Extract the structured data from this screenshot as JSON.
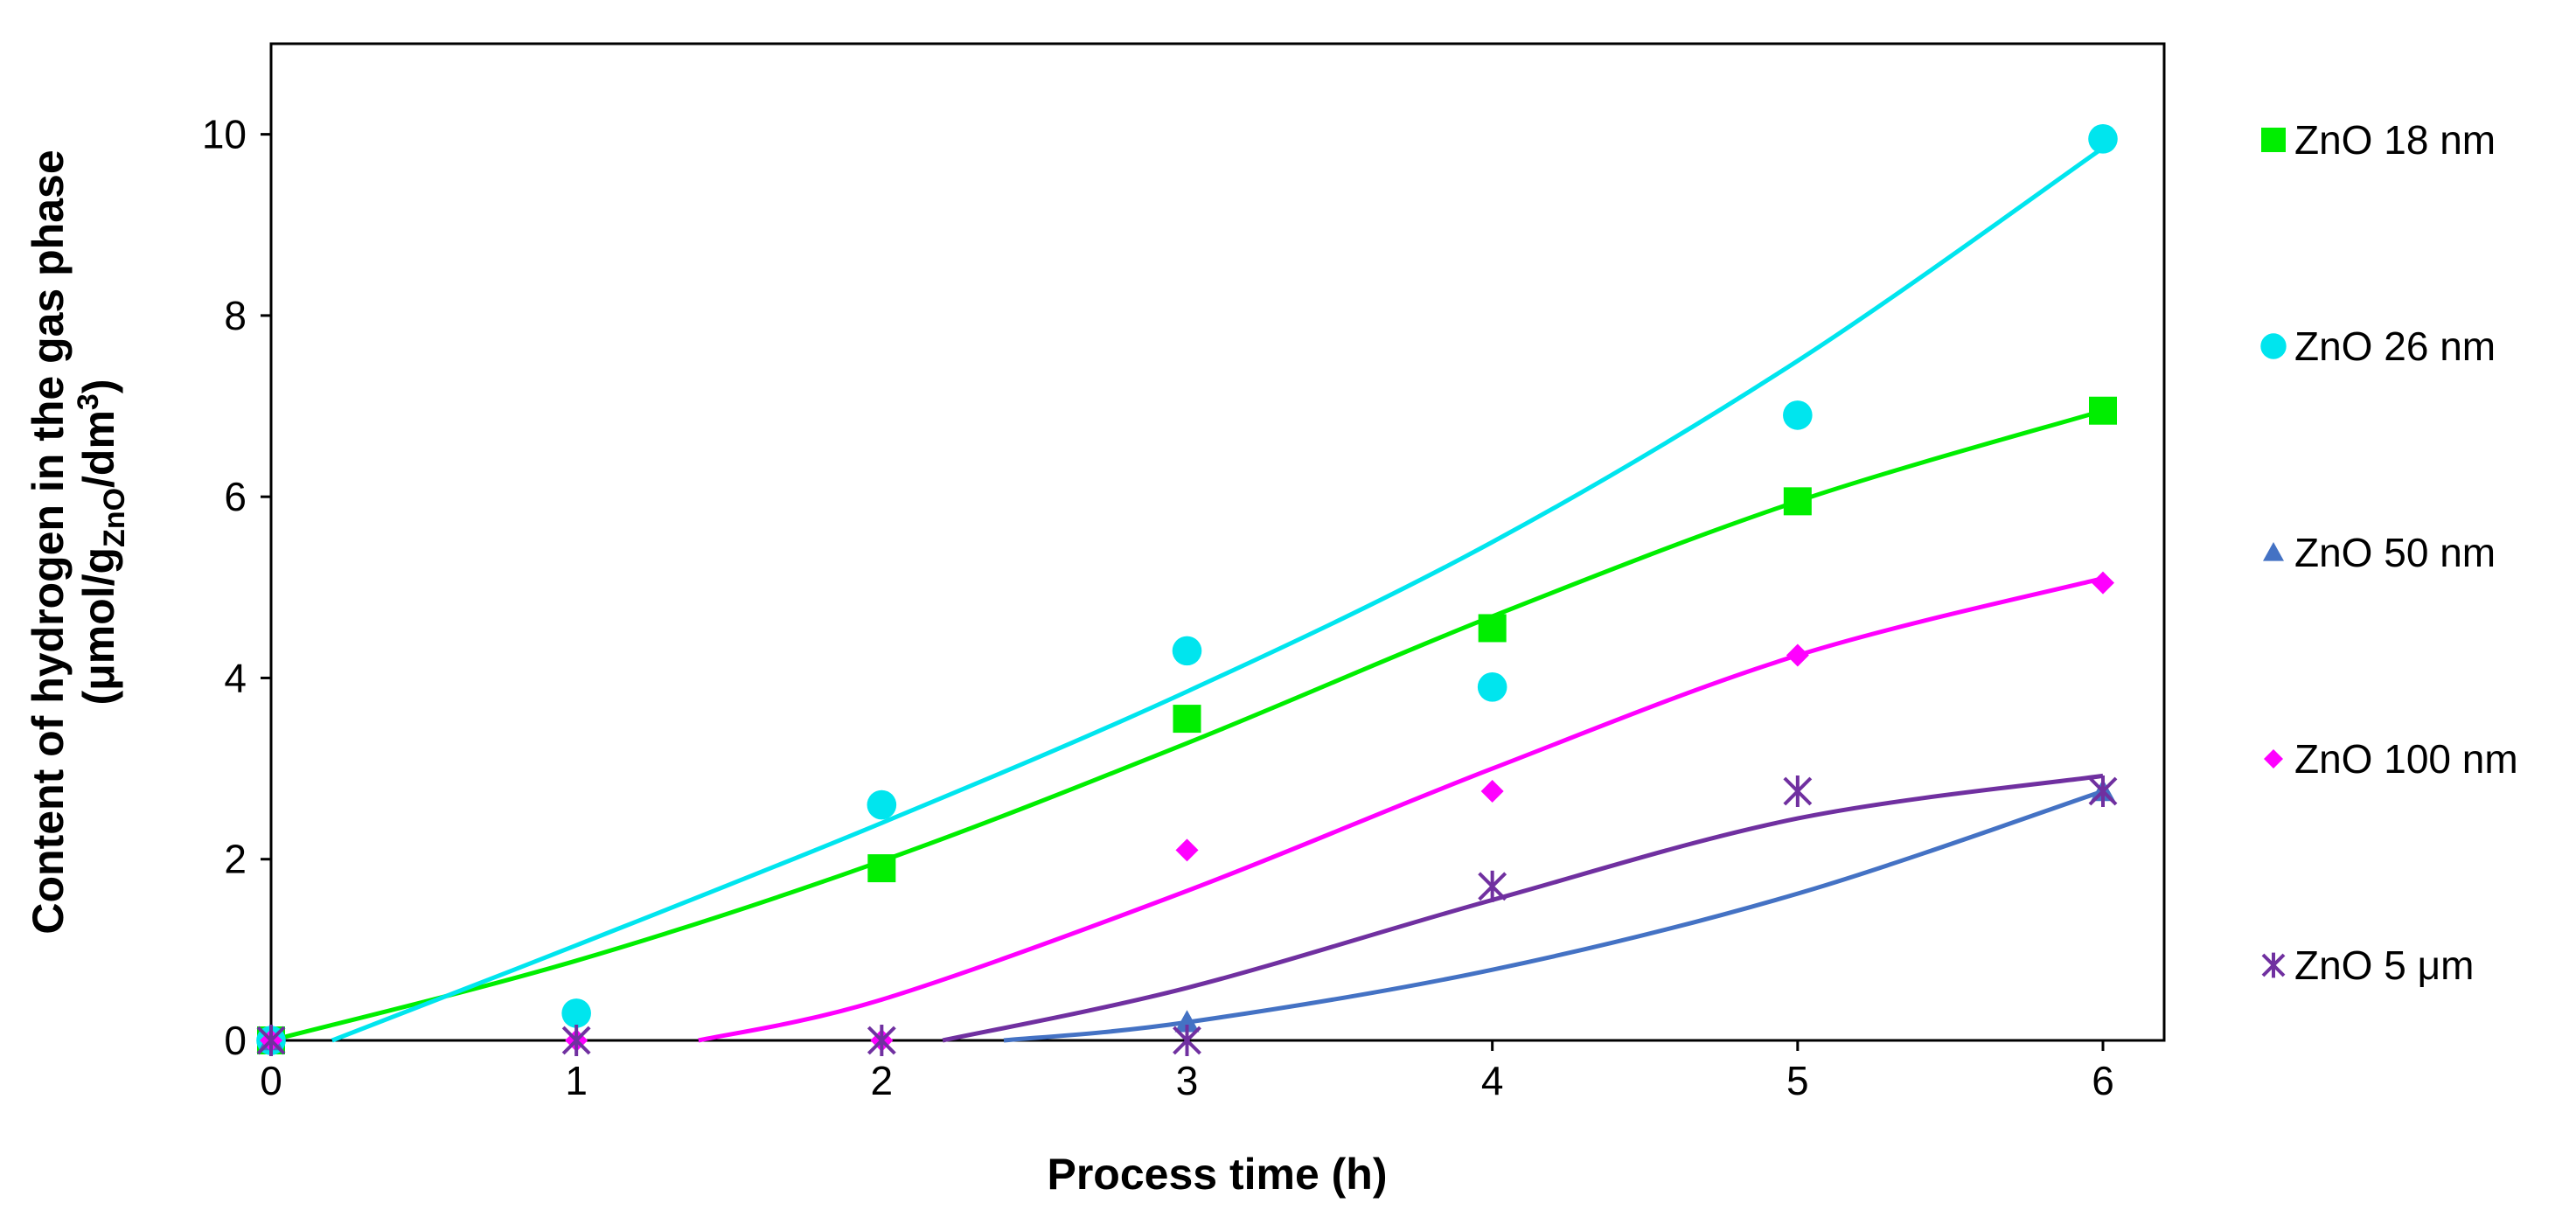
{
  "chart_data": {
    "type": "scatter",
    "title": "",
    "xlabel": "Process time (h)",
    "ylabel": {
      "line1": "Content of hydrogen in the gas phase",
      "line2_prefix": "(μmol/g",
      "line2_sub": "ZnO",
      "line2_mid": "/dm",
      "line2_sup": "3",
      "line2_suffix": ")"
    },
    "xlim": [
      0,
      6
    ],
    "ylim": [
      0,
      11
    ],
    "x_ticks": [
      "0",
      "1",
      "2",
      "3",
      "4",
      "5",
      "6"
    ],
    "y_ticks": [
      "0",
      "2",
      "4",
      "6",
      "8",
      "10"
    ],
    "grid": false,
    "legend_position": "right",
    "series": [
      {
        "name": "ZnO 18 nm",
        "color": "#00EE00",
        "marker": "square",
        "x": [
          0,
          2,
          3,
          4,
          5,
          6
        ],
        "y": [
          0,
          1.9,
          3.55,
          4.55,
          5.95,
          6.95
        ],
        "fit": [
          [
            0,
            0
          ],
          [
            1,
            0.88
          ],
          [
            2,
            1.98
          ],
          [
            3,
            3.28
          ],
          [
            4,
            4.68
          ],
          [
            5,
            5.95
          ],
          [
            6,
            6.95
          ]
        ]
      },
      {
        "name": "ZnO 26 nm",
        "color": "#00E5EE",
        "marker": "circle",
        "x": [
          0,
          1,
          2,
          3,
          4,
          5,
          6
        ],
        "y": [
          0,
          0.3,
          2.6,
          4.3,
          3.9,
          6.9,
          9.95
        ],
        "fit": [
          [
            0.2,
            0
          ],
          [
            1,
            1.05
          ],
          [
            2,
            2.4
          ],
          [
            3,
            3.85
          ],
          [
            4,
            5.5
          ],
          [
            5,
            7.5
          ],
          [
            6,
            9.85
          ]
        ]
      },
      {
        "name": "ZnO 50 nm",
        "color": "#4472C4",
        "marker": "triangle",
        "x": [
          0,
          3,
          6
        ],
        "y": [
          0,
          0.2,
          2.75
        ],
        "fit": [
          [
            2.4,
            0
          ],
          [
            3,
            0.2
          ],
          [
            4,
            0.78
          ],
          [
            5,
            1.62
          ],
          [
            6,
            2.75
          ]
        ]
      },
      {
        "name": "ZnO 100 nm",
        "color": "#FF00FF",
        "marker": "diamond",
        "x": [
          0,
          1,
          2,
          3,
          4,
          5,
          6
        ],
        "y": [
          0,
          0,
          0,
          2.1,
          2.75,
          4.25,
          5.05
        ],
        "fit": [
          [
            1.4,
            0
          ],
          [
            2,
            0.45
          ],
          [
            3,
            1.65
          ],
          [
            4,
            3.0
          ],
          [
            5,
            4.25
          ],
          [
            6,
            5.1
          ]
        ]
      },
      {
        "name": "ZnO 5 μm",
        "color": "#7030A0",
        "marker": "asterisk",
        "x": [
          0,
          1,
          2,
          3,
          4,
          5,
          6
        ],
        "y": [
          0,
          0,
          0,
          0,
          1.7,
          2.75,
          2.75
        ],
        "fit": [
          [
            2.2,
            0
          ],
          [
            3,
            0.58
          ],
          [
            4,
            1.55
          ],
          [
            5,
            2.45
          ],
          [
            6,
            2.92
          ]
        ]
      }
    ]
  }
}
